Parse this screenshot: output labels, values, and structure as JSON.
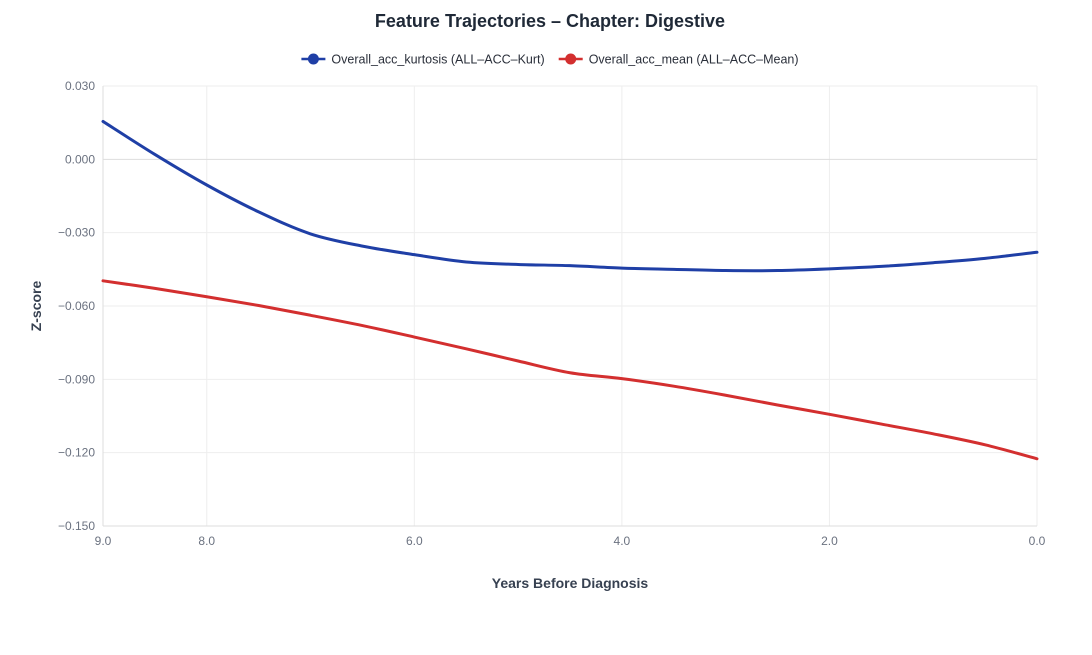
{
  "chart_data": {
    "type": "line",
    "title": "Feature Trajectories – Chapter: Digestive",
    "xlabel": "Years Before Diagnosis",
    "ylabel": "Z-score",
    "xlim": [
      9.0,
      0.0
    ],
    "ylim": [
      -0.15,
      0.03
    ],
    "x_ticks": [
      9.0,
      8.0,
      6.0,
      4.0,
      2.0,
      0.0
    ],
    "x_tick_labels": [
      "9.0",
      "8.0",
      "6.0",
      "4.0",
      "2.0",
      "0.0"
    ],
    "y_ticks": [
      0.03,
      0.0,
      -0.03,
      -0.06,
      -0.09,
      -0.12,
      -0.15
    ],
    "y_tick_labels": [
      "0.030",
      "0.000",
      "−0.030",
      "−0.060",
      "−0.090",
      "−0.120",
      "−0.150"
    ],
    "grid": true,
    "legend_position": "top-center",
    "series": [
      {
        "name": "Overall_acc_kurtosis (ALL–ACC–Kurt)",
        "color": "#1f3fa6",
        "x": [
          9.0,
          8.5,
          8.0,
          7.5,
          7.0,
          6.5,
          6.0,
          5.5,
          5.0,
          4.5,
          4.0,
          3.5,
          3.0,
          2.5,
          2.0,
          1.5,
          1.0,
          0.5,
          0.0
        ],
        "y": [
          0.0155,
          0.002,
          -0.0105,
          -0.0215,
          -0.0305,
          -0.0355,
          -0.039,
          -0.042,
          -0.043,
          -0.0435,
          -0.0445,
          -0.045,
          -0.0455,
          -0.0455,
          -0.0448,
          -0.0438,
          -0.0423,
          -0.0405,
          -0.038
        ]
      },
      {
        "name": "Overall_acc_mean (ALL–ACC–Mean)",
        "color": "#d32f2f",
        "x": [
          9.0,
          8.5,
          8.0,
          7.5,
          7.0,
          6.5,
          6.0,
          5.5,
          5.0,
          4.5,
          4.0,
          3.5,
          3.0,
          2.5,
          2.0,
          1.5,
          1.0,
          0.5,
          0.0
        ],
        "y": [
          -0.0497,
          -0.0528,
          -0.0562,
          -0.0598,
          -0.0638,
          -0.068,
          -0.0727,
          -0.0775,
          -0.0825,
          -0.0873,
          -0.0897,
          -0.0928,
          -0.0965,
          -0.1005,
          -0.1043,
          -0.1083,
          -0.1123,
          -0.1168,
          -0.1225
        ]
      }
    ]
  }
}
